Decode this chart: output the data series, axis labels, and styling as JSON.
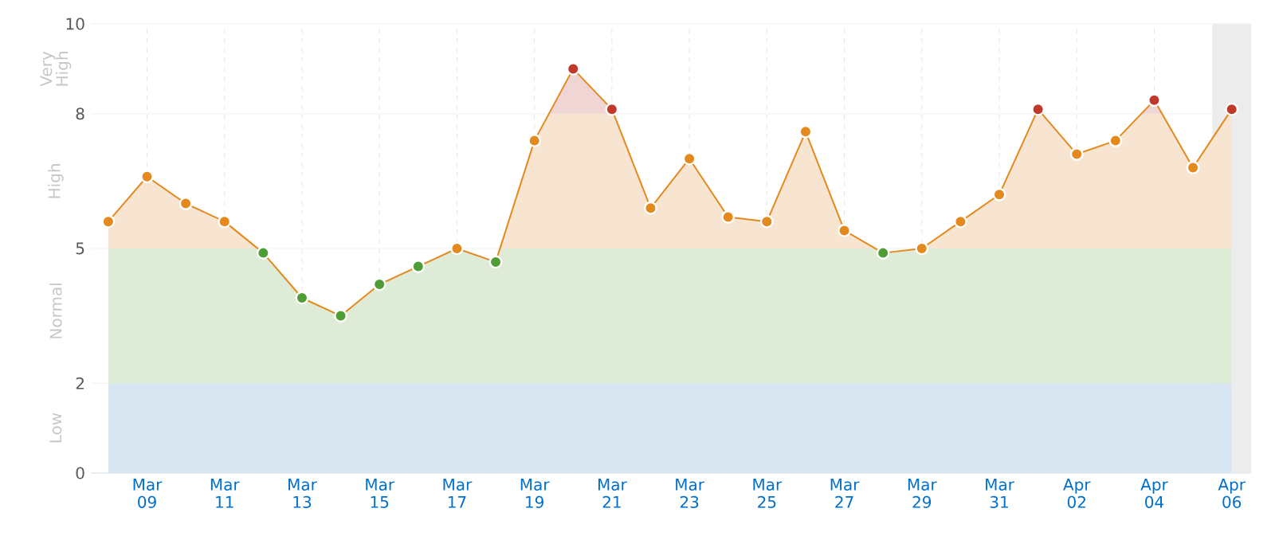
{
  "chart_data": {
    "type": "line",
    "categories": [
      null,
      "Mar 09",
      null,
      "Mar 11",
      null,
      "Mar 13",
      null,
      "Mar 15",
      null,
      "Mar 17",
      null,
      "Mar 19",
      null,
      "Mar 21",
      null,
      "Mar 23",
      null,
      "Mar 25",
      null,
      "Mar 27",
      null,
      "Mar 29",
      null,
      "Mar 31",
      null,
      "Apr 02",
      null,
      "Apr 04",
      null,
      "Apr 06"
    ],
    "values": [
      5.6,
      6.6,
      6.0,
      5.6,
      4.9,
      3.9,
      3.5,
      4.2,
      4.6,
      5.0,
      4.7,
      7.4,
      9.0,
      8.1,
      5.9,
      7.0,
      5.7,
      5.6,
      7.6,
      5.4,
      4.9,
      5.0,
      5.6,
      6.2,
      8.1,
      7.1,
      7.4,
      8.3,
      6.8,
      8.1
    ],
    "color": "#e3891e",
    "colors": [
      "#e3891e",
      "#e3891e",
      "#e3891e",
      "#e3891e",
      "#4e9d35",
      "#4e9d35",
      "#4e9d35",
      "#4e9d35",
      "#4e9d35",
      "#e3891e",
      "#4e9d35",
      "#e3891e",
      "#c0392b",
      "#c0392b",
      "#e3891e",
      "#e3891e",
      "#e3891e",
      "#e3891e",
      "#e3891e",
      "#e3891e",
      "#4e9d35",
      "#e3891e",
      "#e3891e",
      "#e3891e",
      "#c0392b",
      "#e3891e",
      "#e3891e",
      "#c0392b",
      "#e3891e",
      "#c0392b"
    ],
    "marker": "circle",
    "ylim": [
      0,
      10
    ],
    "yticks": [
      0,
      2,
      5,
      8,
      10
    ],
    "grid": true,
    "bands": [
      {
        "axis": "y",
        "from": 0,
        "to": 2,
        "label": "Low",
        "color": "#d7e6f1"
      },
      {
        "axis": "y",
        "from": 2,
        "to": 5,
        "label": "Normal",
        "color": "#deebd7"
      },
      {
        "axis": "y",
        "from": 5,
        "to": 8,
        "label": "High",
        "color": "#f8e5d1"
      },
      {
        "axis": "y",
        "from": 8,
        "to": 10,
        "label": "Very High",
        "color": "#f0d5d5"
      },
      {
        "axis": "x",
        "from": "Apr 06",
        "to": "Apr 06",
        "color": "#ececec"
      }
    ]
  }
}
